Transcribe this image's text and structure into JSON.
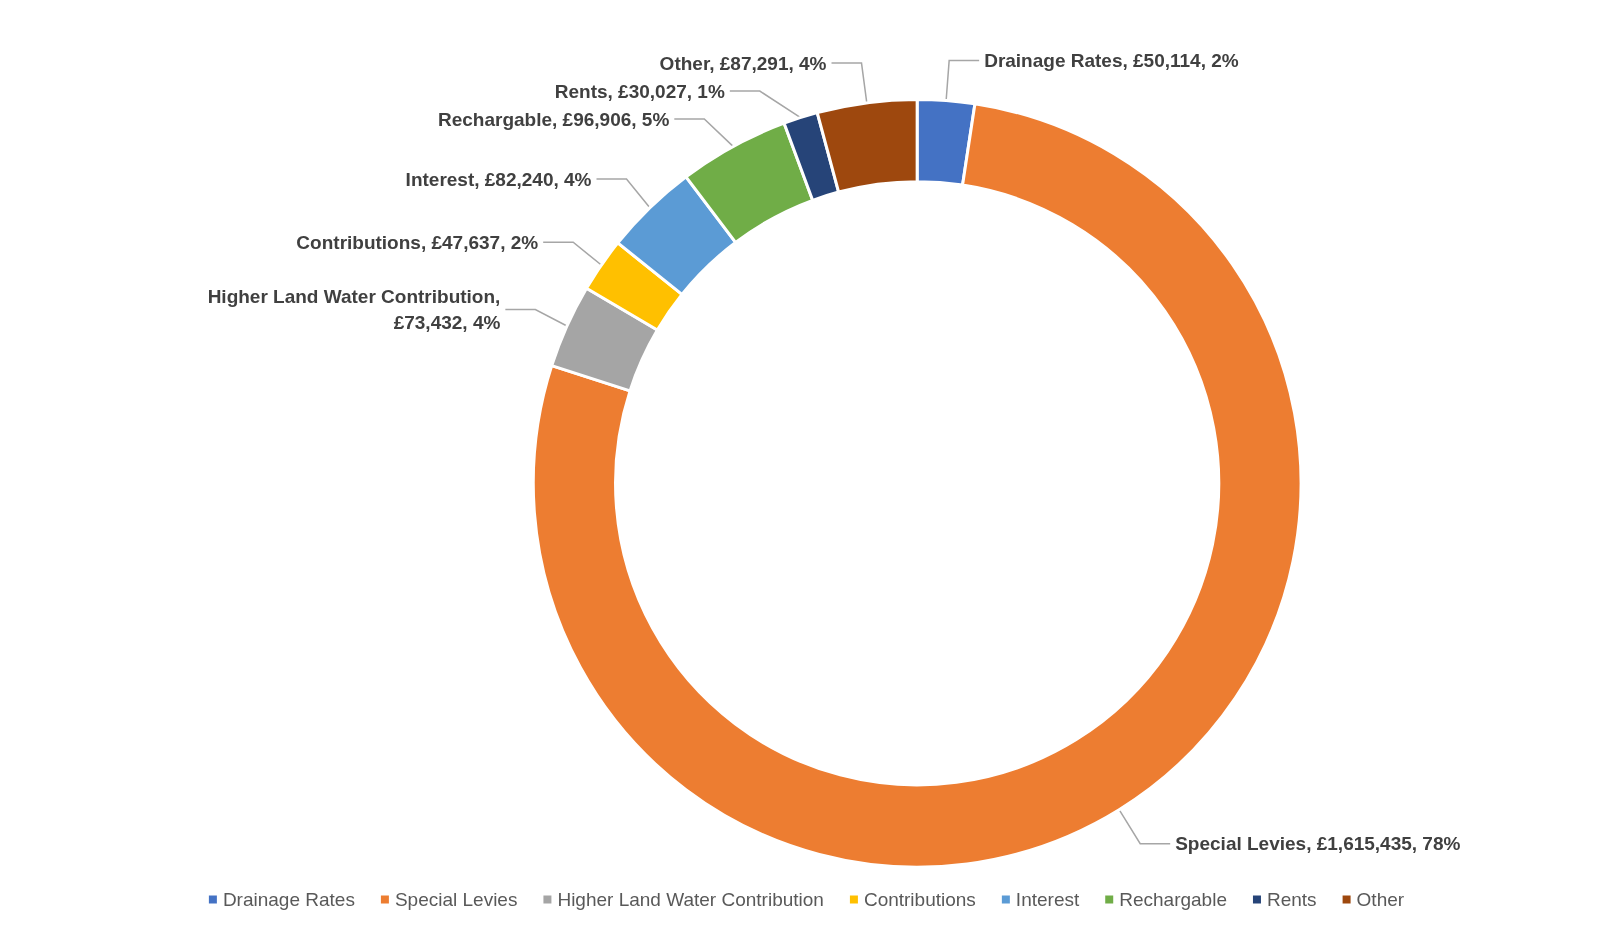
{
  "chart_data": {
    "type": "donut",
    "categories": [
      "Drainage Rates",
      "Special Levies",
      "Higher Land Water Contribution",
      "Contributions",
      "Interest",
      "Rechargable",
      "Rents",
      "Other"
    ],
    "values": [
      50114,
      1615435,
      73432,
      47637,
      82240,
      96906,
      30027,
      87291
    ],
    "colors": [
      "#4472c4",
      "#ed7d31",
      "#a5a5a5",
      "#ffc000",
      "#5b9bd5",
      "#70ad47",
      "#264478",
      "#9e480e"
    ],
    "value_labels": [
      "Drainage Rates, £50,114, 2%",
      "Special Levies, £1,615,435, 78%",
      "Higher Land Water Contribution,\n£73,432, 4%",
      "Contributions, £47,637, 2%",
      "Interest, £82,240, 4%",
      "Rechargable, £96,906, 5%",
      "Rents, £30,027, 1%",
      "Other, £87,291, 4%"
    ],
    "legend": "bottom"
  }
}
